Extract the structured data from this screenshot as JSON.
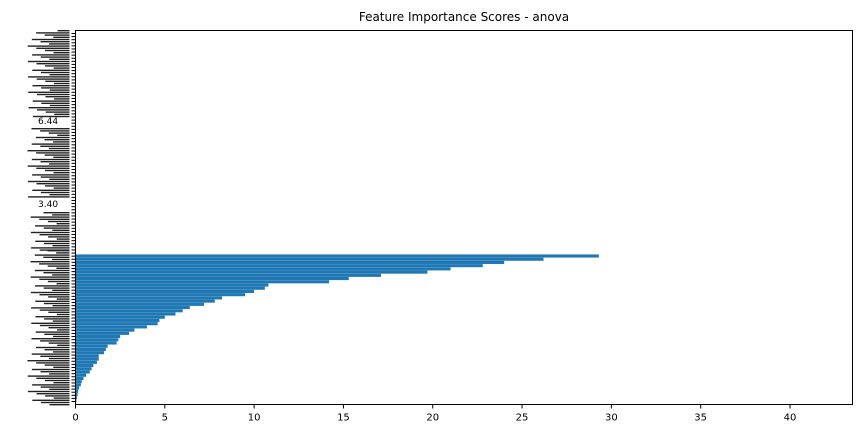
{
  "chart_data": {
    "type": "bar",
    "orientation": "horizontal",
    "title": "Feature Importance Scores - anova",
    "xlabel": "",
    "ylabel": "",
    "xlim": [
      0,
      43.5
    ],
    "x_ticks": [
      "0",
      "5",
      "10",
      "15",
      "20",
      "25",
      "30",
      "35",
      "40"
    ],
    "x_tick_values": [
      0,
      5,
      10,
      15,
      20,
      25,
      30,
      35,
      40
    ],
    "visible_y_labels": [
      "6.44",
      "3.40"
    ],
    "bar_color": "#1f77b4",
    "grid": false,
    "values": [
      0.05,
      0.08,
      0.12,
      0.15,
      0.2,
      0.3,
      0.35,
      0.45,
      0.6,
      0.8,
      0.9,
      1.0,
      1.2,
      1.3,
      1.3,
      1.6,
      1.7,
      1.8,
      2.3,
      2.4,
      2.5,
      3.0,
      3.3,
      4.0,
      4.6,
      4.7,
      5.0,
      5.6,
      6.0,
      6.4,
      7.2,
      7.8,
      8.2,
      9.5,
      10.0,
      10.6,
      10.8,
      14.2,
      15.3,
      17.1,
      19.7,
      21.0,
      22.8,
      24.0,
      26.2,
      29.3
    ]
  }
}
